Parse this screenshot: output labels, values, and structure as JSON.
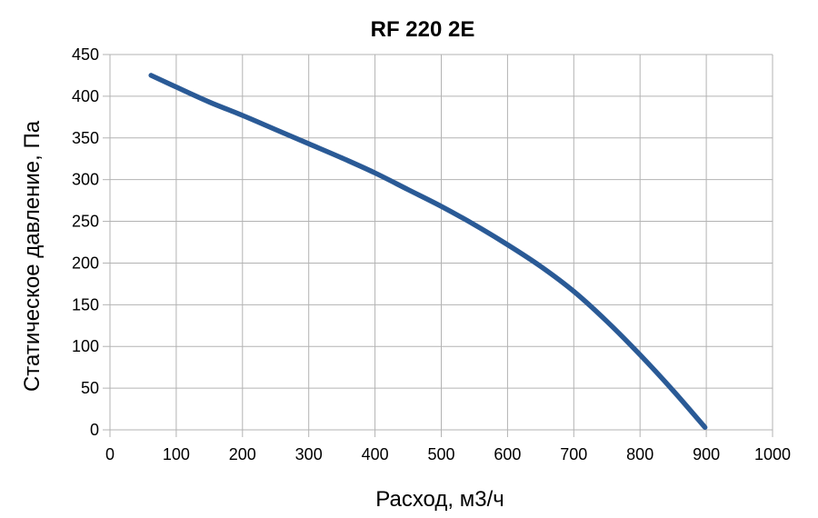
{
  "chart_data": {
    "type": "line",
    "title": "RF 220 2E",
    "xlabel": "Расход, м3/ч",
    "ylabel": "Статическое давление, Па",
    "xlim": [
      0,
      1000
    ],
    "ylim": [
      0,
      450
    ],
    "x_ticks": [
      "0",
      "100",
      "200",
      "300",
      "400",
      "500",
      "600",
      "700",
      "800",
      "900",
      "1000"
    ],
    "y_ticks": [
      "0",
      "50",
      "100",
      "150",
      "200",
      "250",
      "300",
      "350",
      "400",
      "450"
    ],
    "grid": true,
    "legend": "none",
    "series": [
      {
        "color": "#2a5a96",
        "points": [
          [
            62,
            425
          ],
          [
            100,
            411
          ],
          [
            150,
            393
          ],
          [
            200,
            377
          ],
          [
            250,
            360
          ],
          [
            300,
            343
          ],
          [
            350,
            326
          ],
          [
            400,
            308
          ],
          [
            450,
            288
          ],
          [
            500,
            268
          ],
          [
            550,
            246
          ],
          [
            600,
            222
          ],
          [
            650,
            196
          ],
          [
            700,
            166
          ],
          [
            750,
            130
          ],
          [
            800,
            90
          ],
          [
            850,
            47
          ],
          [
            898,
            3
          ]
        ]
      }
    ]
  }
}
